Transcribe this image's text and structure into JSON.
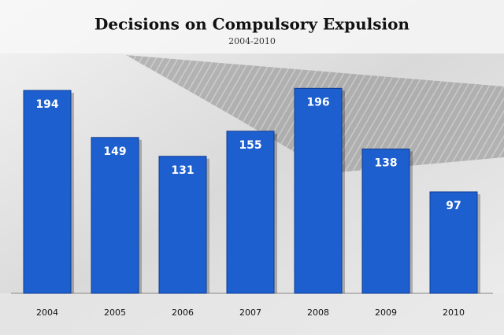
{
  "chart_data": {
    "type": "bar",
    "title": "Decisions on Compulsory Expulsion",
    "subtitle": "2004-2010",
    "categories": [
      "2004",
      "2005",
      "2006",
      "2007",
      "2008",
      "2009",
      "2010"
    ],
    "values": [
      194,
      149,
      131,
      155,
      196,
      138,
      97
    ],
    "color": "#1d5fcf",
    "ylim": [
      0,
      200
    ]
  }
}
